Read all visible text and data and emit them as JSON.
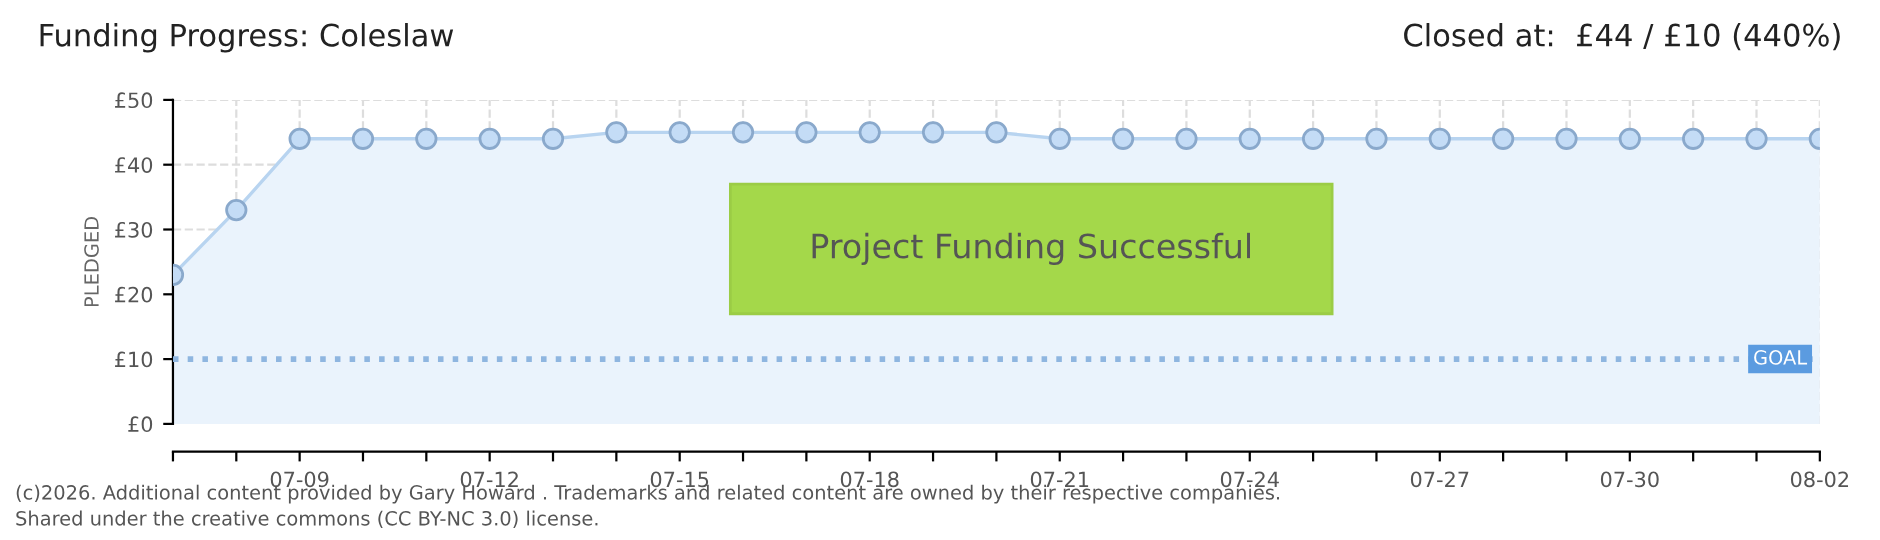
{
  "chart_data": {
    "type": "area",
    "title": "Funding Progress: Coleslaw",
    "subtitle": "Closed at:  £44 / £10 (440%)",
    "ylabel": "PLEDGED",
    "categories": [
      null,
      null,
      "07-09",
      null,
      null,
      "07-12",
      null,
      null,
      "07-15",
      null,
      null,
      "07-18",
      null,
      null,
      "07-21",
      null,
      null,
      "07-24",
      null,
      null,
      "07-27",
      null,
      null,
      "07-30",
      null,
      null,
      "08-02"
    ],
    "series": [
      {
        "color": "#b8d4f0",
        "values": [
          23,
          33,
          44,
          44,
          44,
          44,
          44,
          45,
          45,
          45,
          45,
          45,
          45,
          45,
          44,
          44,
          44,
          44,
          44,
          44,
          44,
          44,
          44,
          44,
          44,
          44,
          44
        ]
      }
    ],
    "ylim": [
      0,
      50
    ],
    "yticks": [
      {
        "value": 0,
        "label": "£0"
      },
      {
        "value": 10,
        "label": "£10"
      },
      {
        "value": 20,
        "label": "£20"
      },
      {
        "value": 30,
        "label": "£30"
      },
      {
        "value": 40,
        "label": "£40"
      },
      {
        "value": 50,
        "label": "£50"
      }
    ],
    "ref_lines": [
      {
        "axis": "y",
        "value": 10,
        "label": "GOAL",
        "color": "#8fb6e0",
        "line_style": "dotted"
      }
    ],
    "grid": true,
    "marker": "circle",
    "legend": false,
    "annotations": [
      "Project Funding Successful",
      "(c)2026. Additional content provided by Gary Howard . Trademarks and related content are owned by their respective companies.",
      "Shared under the creative commons (CC BY-NC 3.0) license."
    ]
  }
}
